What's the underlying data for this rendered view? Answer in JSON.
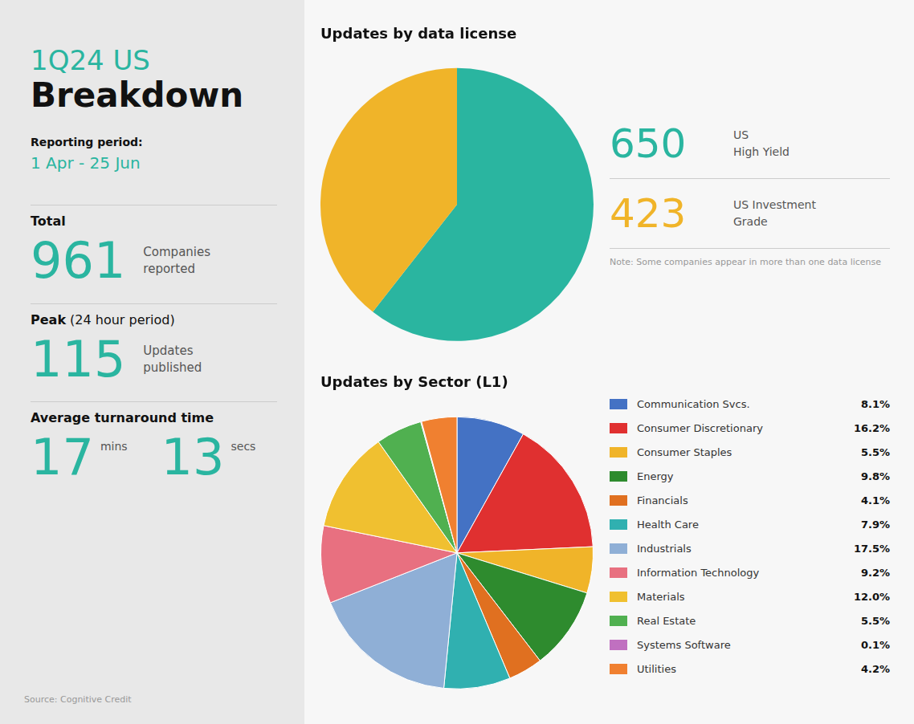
{
  "chart_data": [
    {
      "type": "pie",
      "title": "Updates by data license",
      "subtitle": "Note: Some companies appear in more than one data license",
      "categories": [
        "US\nHigh Yield",
        "US Investment\nGrade"
      ],
      "values": [
        650,
        423
      ],
      "colors": [
        "#2ab5a0",
        "#f0b429"
      ],
      "legend": "right",
      "annotations": [
        "1Q24 US",
        "Breakdown",
        "Reporting period:",
        "1 Apr - 25 Jun",
        "Total",
        "961",
        "Companies\nreported",
        "Peak",
        " (24 hour period)",
        "115",
        "Updates\npublished",
        "Average turnaround time",
        "17",
        "mins",
        "13",
        "secs",
        "Source: Cognitive Credit"
      ]
    },
    {
      "type": "pie",
      "title": "Updates by Sector (L1)",
      "categories": [
        "Communication Svcs.",
        "Consumer Discretionary",
        "Consumer Staples",
        "Energy",
        "Financials",
        "Health Care",
        "Industrials",
        "Information Technology",
        "Materials",
        "Real Estate",
        "Systems Software",
        "Utilities"
      ],
      "values": [
        8.1,
        16.2,
        5.5,
        9.8,
        4.1,
        7.9,
        17.5,
        9.2,
        12.0,
        5.5,
        0.1,
        4.2
      ],
      "value_labels": [
        "8.1%",
        "16.2%",
        "5.5%",
        "9.8%",
        "4.1%",
        "7.9%",
        "17.5%",
        "9.2%",
        "12.0%",
        "5.5%",
        "0.1%",
        "4.2%"
      ],
      "colors": [
        "#4472c4",
        "#e03030",
        "#f0b429",
        "#2e8b2e",
        "#e07020",
        "#30b0b0",
        "#8fafd6",
        "#e87080",
        "#f0c030",
        "#50b050",
        "#c070c0",
        "#f08030"
      ],
      "legend": "right"
    }
  ]
}
